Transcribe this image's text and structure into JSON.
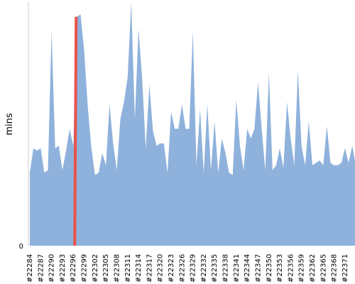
{
  "chart_data": {
    "type": "area",
    "title": "",
    "xlabel": "",
    "ylabel": "mins",
    "ylim": [
      0,
      100
    ],
    "y_ticks": [
      0
    ],
    "grid": false,
    "legend": "none",
    "colors": {
      "area": "#8fb2dc",
      "highlight": "#e8534a",
      "axis": "#cccccc"
    },
    "highlight_x": "#22296",
    "x_tick_labels": [
      "#22284",
      "#22287",
      "#22290",
      "#22293",
      "#22296",
      "#22299",
      "#22302",
      "#22305",
      "#22308",
      "#22311",
      "#22314",
      "#22317",
      "#22320",
      "#22323",
      "#22326",
      "#22329",
      "#22332",
      "#22335",
      "#22338",
      "#22341",
      "#22344",
      "#22347",
      "#22350",
      "#22353",
      "#22356",
      "#22359",
      "#22362",
      "#22365",
      "#22368",
      "#22371"
    ],
    "x_start": 22284,
    "x_end": 22372,
    "values": [
      30,
      40,
      39,
      40,
      30,
      31,
      88,
      40,
      41,
      31,
      39,
      48,
      41,
      94,
      95,
      80,
      57,
      40,
      29,
      30,
      38,
      33,
      58,
      42,
      31,
      52,
      59,
      69,
      100,
      52,
      89,
      69,
      40,
      66,
      47,
      41,
      42,
      42,
      30,
      55,
      48,
      48,
      58,
      48,
      48,
      88,
      33,
      56,
      30,
      58,
      31,
      51,
      30,
      44,
      38,
      30,
      29,
      60,
      41,
      31,
      48,
      44,
      48,
      67,
      48,
      31,
      71,
      31,
      33,
      40,
      32,
      59,
      44,
      33,
      72,
      41,
      33,
      51,
      33,
      34,
      35,
      33,
      49,
      34,
      33,
      33,
      34,
      40,
      34,
      41,
      33
    ]
  }
}
